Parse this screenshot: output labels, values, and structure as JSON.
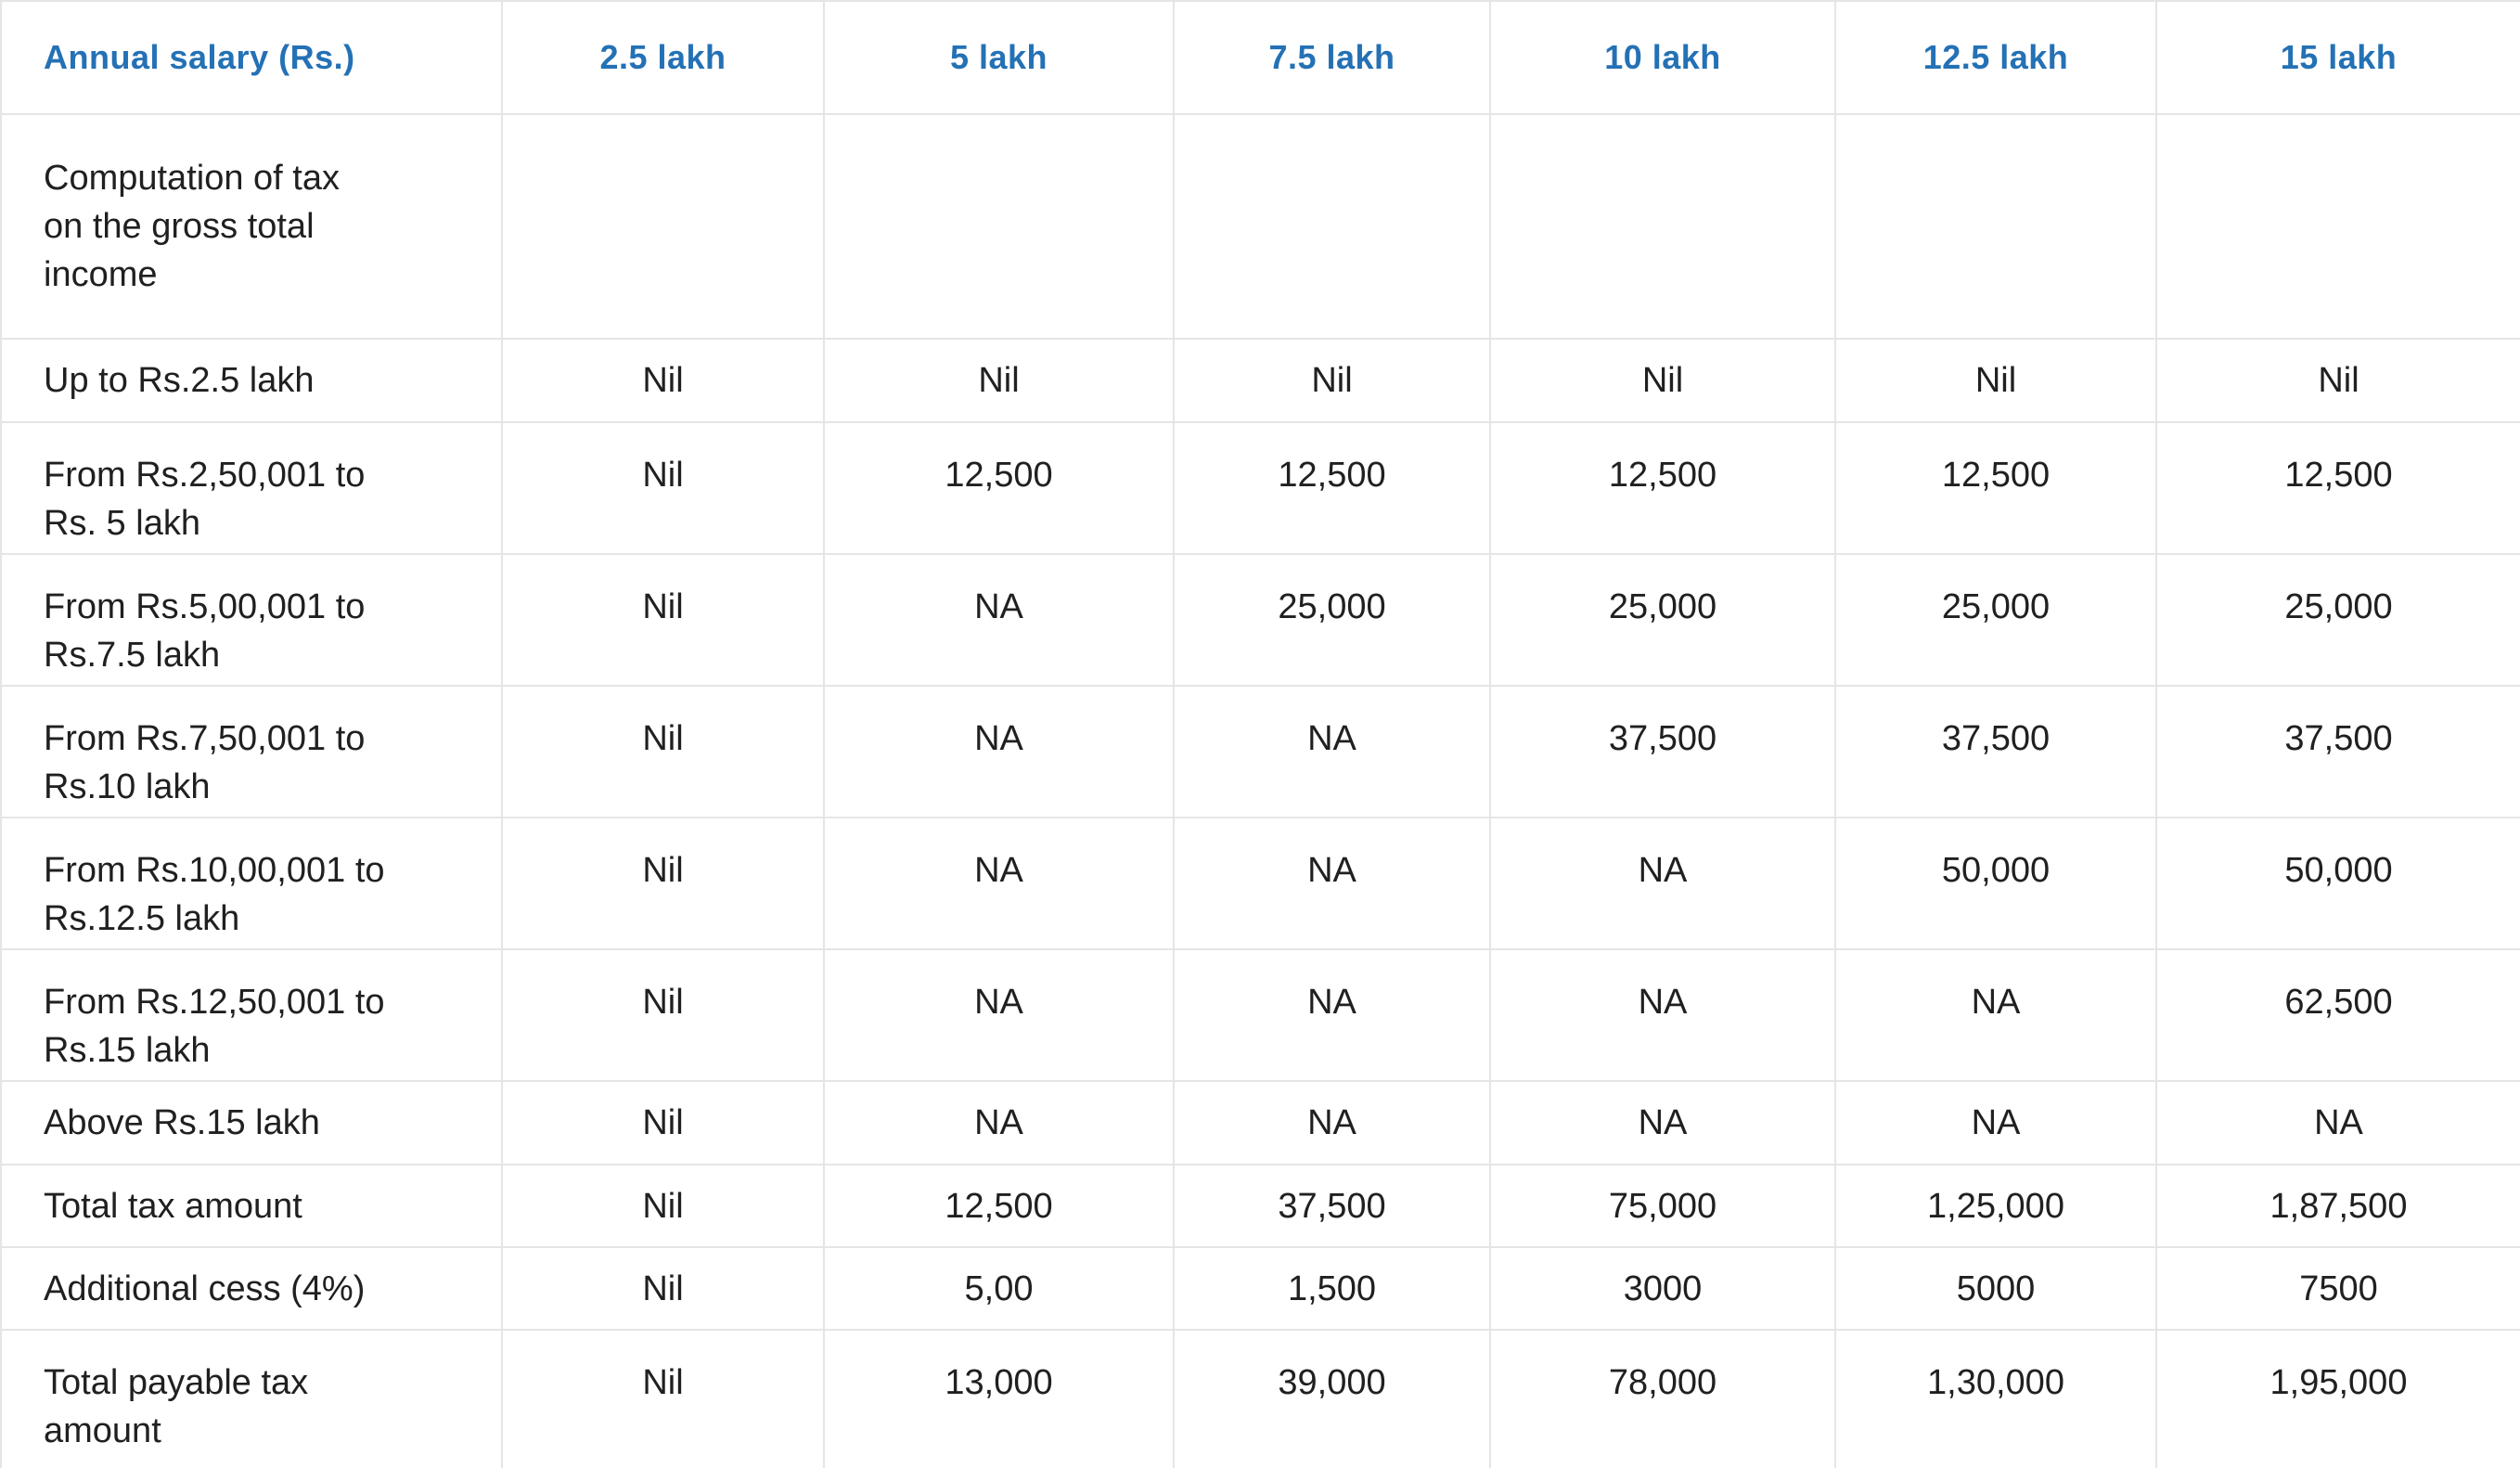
{
  "table": {
    "header": {
      "label": "Annual salary (Rs.)",
      "columns": [
        "2.5 lakh",
        "5 lakh",
        "7.5 lakh",
        "10 lakh",
        "12.5 lakh",
        "15 lakh"
      ]
    },
    "rows": [
      {
        "label": [
          "Computation of tax",
          "on the gross total",
          "income"
        ],
        "values": [
          "",
          "",
          "",
          "",
          "",
          ""
        ]
      },
      {
        "label": [
          "Up to Rs.2.5 lakh"
        ],
        "values": [
          "Nil",
          "Nil",
          "Nil",
          "Nil",
          "Nil",
          "Nil"
        ]
      },
      {
        "label": [
          "From Rs.2,50,001 to",
          "Rs. 5 lakh"
        ],
        "values": [
          "Nil",
          "12,500",
          "12,500",
          "12,500",
          "12,500",
          "12,500"
        ]
      },
      {
        "label": [
          "From Rs.5,00,001 to",
          "Rs.7.5 lakh"
        ],
        "values": [
          "Nil",
          "NA",
          "25,000",
          "25,000",
          "25,000",
          "25,000"
        ]
      },
      {
        "label": [
          "From Rs.7,50,001 to",
          "Rs.10 lakh"
        ],
        "values": [
          "Nil",
          "NA",
          "NA",
          "37,500",
          "37,500",
          "37,500"
        ]
      },
      {
        "label": [
          "From Rs.10,00,001 to",
          "Rs.12.5 lakh"
        ],
        "values": [
          "Nil",
          "NA",
          "NA",
          "NA",
          "50,000",
          "50,000"
        ]
      },
      {
        "label": [
          "From Rs.12,50,001 to",
          "Rs.15 lakh"
        ],
        "values": [
          "Nil",
          "NA",
          "NA",
          "NA",
          "NA",
          "62,500"
        ]
      },
      {
        "label": [
          "Above Rs.15 lakh"
        ],
        "values": [
          "Nil",
          "NA",
          "NA",
          "NA",
          "NA",
          "NA"
        ]
      },
      {
        "label": [
          "Total tax amount"
        ],
        "values": [
          "Nil",
          "12,500",
          "37,500",
          "75,000",
          "1,25,000",
          "1,87,500"
        ]
      },
      {
        "label": [
          "Additional cess (4%)"
        ],
        "values": [
          "Nil",
          "5,00",
          "1,500",
          "3000",
          "5000",
          "7500"
        ]
      },
      {
        "label": [
          "Total payable tax",
          "amount"
        ],
        "values": [
          "Nil",
          "13,000",
          "39,000",
          "78,000",
          "1,30,000",
          "1,95,000"
        ]
      }
    ]
  },
  "colors": {
    "header_background": "#f3f5f8",
    "header_text": "#2471b5",
    "body_text": "#202020",
    "border": "#e4e5e7",
    "row_background": "#ffffff"
  }
}
